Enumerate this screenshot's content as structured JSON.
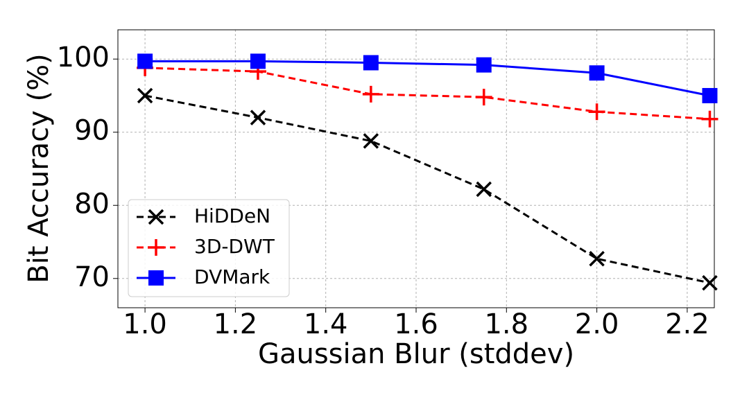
{
  "chart_data": {
    "type": "line",
    "xlabel": "Gaussian Blur (stddev)",
    "ylabel": "Bit Accuracy (%)",
    "x": [
      1.0,
      1.25,
      1.5,
      1.75,
      2.0,
      2.25
    ],
    "series": [
      {
        "name": "HiDDeN",
        "color": "#000000",
        "dash": true,
        "marker": "x",
        "values": [
          95.0,
          92.0,
          88.8,
          82.2,
          72.7,
          69.4
        ]
      },
      {
        "name": "3D-DWT",
        "color": "#ff0000",
        "dash": true,
        "marker": "plus",
        "values": [
          98.8,
          98.3,
          95.2,
          94.8,
          92.8,
          91.8
        ]
      },
      {
        "name": "DVMark",
        "color": "#0000ff",
        "dash": false,
        "marker": "square",
        "values": [
          99.7,
          99.7,
          99.5,
          99.2,
          98.1,
          95.0
        ]
      }
    ],
    "xlim": [
      0.94,
      2.26
    ],
    "xticks": [
      {
        "value": 1.0,
        "label": "1.0"
      },
      {
        "value": 1.2,
        "label": "1.2"
      },
      {
        "value": 1.4,
        "label": "1.4"
      },
      {
        "value": 1.6,
        "label": "1.6"
      },
      {
        "value": 1.8,
        "label": "1.8"
      },
      {
        "value": 2.0,
        "label": "2.0"
      },
      {
        "value": 2.2,
        "label": "2.2"
      }
    ],
    "ylim": [
      66,
      104
    ],
    "yticks": [
      70,
      80,
      90,
      100
    ],
    "grid": true,
    "legend": "lower left"
  }
}
